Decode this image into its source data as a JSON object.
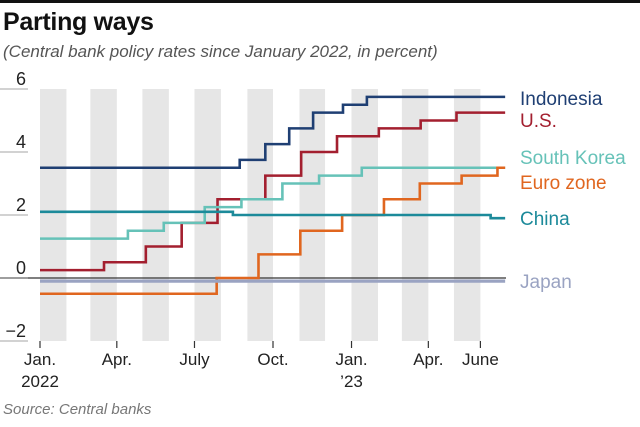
{
  "title": "Parting ways",
  "subtitle": "(Central bank policy rates since January 2022, in percent)",
  "source": "Source: Central banks",
  "chart_data": {
    "type": "line",
    "step": true,
    "title": "Parting ways",
    "subtitle": "(Central bank policy rates since January 2022, in percent)",
    "xlabel": "",
    "ylabel": "",
    "x_range": [
      "2022-01-01",
      "2023-07-01"
    ],
    "ylim": [
      -2,
      6
    ],
    "yticks": [
      6,
      4,
      2,
      0,
      -2
    ],
    "ytick_labels": [
      "6",
      "4",
      "2",
      "0",
      "−2"
    ],
    "grid": "alternating vertical month shading",
    "legend": "direct labels at right end of lines",
    "xticks": [
      {
        "date": "2022-01-01",
        "line1": "Jan.",
        "line2": "2022"
      },
      {
        "date": "2022-04-01",
        "line1": "Apr.",
        "line2": ""
      },
      {
        "date": "2022-07-01",
        "line1": "July",
        "line2": ""
      },
      {
        "date": "2022-10-01",
        "line1": "Oct.",
        "line2": ""
      },
      {
        "date": "2023-01-01",
        "line1": "Jan.",
        "line2": "’23"
      },
      {
        "date": "2023-04-01",
        "line1": "Apr.",
        "line2": ""
      },
      {
        "date": "2023-06-01",
        "line1": "June",
        "line2": ""
      }
    ],
    "series": [
      {
        "name": "Indonesia",
        "color": "#1f3f73",
        "points": [
          [
            "2022-01-01",
            3.5
          ],
          [
            "2022-08-23",
            3.75
          ],
          [
            "2022-09-22",
            4.25
          ],
          [
            "2022-10-20",
            4.75
          ],
          [
            "2022-11-17",
            5.25
          ],
          [
            "2022-12-22",
            5.5
          ],
          [
            "2023-01-19",
            5.75
          ],
          [
            "2023-06-30",
            5.75
          ]
        ]
      },
      {
        "name": "U.S.",
        "color": "#a31f2f",
        "points": [
          [
            "2022-01-01",
            0.25
          ],
          [
            "2022-03-17",
            0.5
          ],
          [
            "2022-05-05",
            1.0
          ],
          [
            "2022-06-16",
            1.75
          ],
          [
            "2022-07-28",
            2.5
          ],
          [
            "2022-09-22",
            3.25
          ],
          [
            "2022-11-03",
            4.0
          ],
          [
            "2022-12-15",
            4.5
          ],
          [
            "2023-02-02",
            4.75
          ],
          [
            "2023-03-23",
            5.0
          ],
          [
            "2023-05-04",
            5.25
          ],
          [
            "2023-06-30",
            5.25
          ]
        ]
      },
      {
        "name": "South Korea",
        "color": "#66c2b8",
        "points": [
          [
            "2022-01-01",
            1.25
          ],
          [
            "2022-01-14",
            1.25
          ],
          [
            "2022-04-14",
            1.5
          ],
          [
            "2022-05-26",
            1.75
          ],
          [
            "2022-07-13",
            2.25
          ],
          [
            "2022-08-25",
            2.5
          ],
          [
            "2022-10-12",
            3.0
          ],
          [
            "2022-11-24",
            3.25
          ],
          [
            "2023-01-13",
            3.5
          ],
          [
            "2023-06-30",
            3.5
          ]
        ]
      },
      {
        "name": "Euro zone",
        "color": "#e0661f",
        "points": [
          [
            "2022-01-01",
            -0.5
          ],
          [
            "2022-07-27",
            0.0
          ],
          [
            "2022-09-14",
            0.75
          ],
          [
            "2022-11-02",
            1.5
          ],
          [
            "2022-12-21",
            2.0
          ],
          [
            "2023-02-08",
            2.5
          ],
          [
            "2023-03-22",
            3.0
          ],
          [
            "2023-05-10",
            3.25
          ],
          [
            "2023-06-21",
            3.5
          ],
          [
            "2023-06-30",
            3.5
          ]
        ]
      },
      {
        "name": "China",
        "color": "#1c8a9a",
        "points": [
          [
            "2022-01-01",
            2.1
          ],
          [
            "2022-01-17",
            2.1
          ],
          [
            "2022-08-15",
            2.0
          ],
          [
            "2023-06-13",
            1.9
          ],
          [
            "2023-06-30",
            1.9
          ]
        ]
      },
      {
        "name": "Japan",
        "color": "#9aa3c2",
        "points": [
          [
            "2022-01-01",
            -0.1
          ],
          [
            "2023-06-30",
            -0.1
          ]
        ]
      }
    ]
  }
}
